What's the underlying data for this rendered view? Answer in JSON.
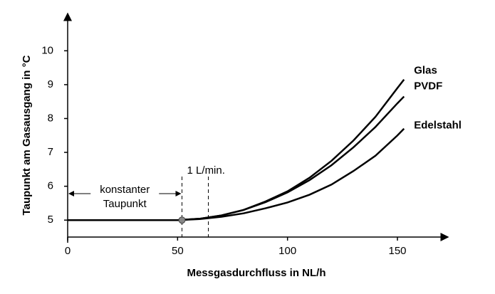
{
  "chart_data": {
    "type": "line",
    "x_label": "Messgasdurchfluss in NL/h",
    "y_label": "Taupunkt am Gasausgang in °C",
    "x": [
      0,
      50,
      60,
      70,
      80,
      90,
      100,
      110,
      120,
      130,
      140,
      150,
      153
    ],
    "series": [
      {
        "name": "Glas",
        "color": "#000000",
        "values": [
          5,
          5,
          5.04,
          5.14,
          5.3,
          5.55,
          5.85,
          6.25,
          6.75,
          7.35,
          8.05,
          8.9,
          9.15
        ]
      },
      {
        "name": "PVDF",
        "color": "#000000",
        "values": [
          5,
          5,
          5.04,
          5.14,
          5.3,
          5.53,
          5.82,
          6.18,
          6.62,
          7.15,
          7.75,
          8.45,
          8.65
        ]
      },
      {
        "name": "Edelstahl",
        "color": "#000000",
        "values": [
          5,
          5,
          5.03,
          5.1,
          5.2,
          5.35,
          5.52,
          5.75,
          6.05,
          6.45,
          6.9,
          7.5,
          7.7
        ]
      }
    ],
    "xlim": [
      0,
      173
    ],
    "ylim": [
      4.5,
      11.1
    ],
    "xticks": [
      0,
      50,
      100,
      150
    ],
    "yticks": [
      5,
      6,
      7,
      8,
      9,
      10
    ],
    "vlines": [
      {
        "x": 52
      },
      {
        "x": 64,
        "label": "1 L/min."
      }
    ],
    "point": {
      "x": 52,
      "y": 5
    },
    "annotation": [
      "konstanter",
      "Taupunkt"
    ]
  }
}
